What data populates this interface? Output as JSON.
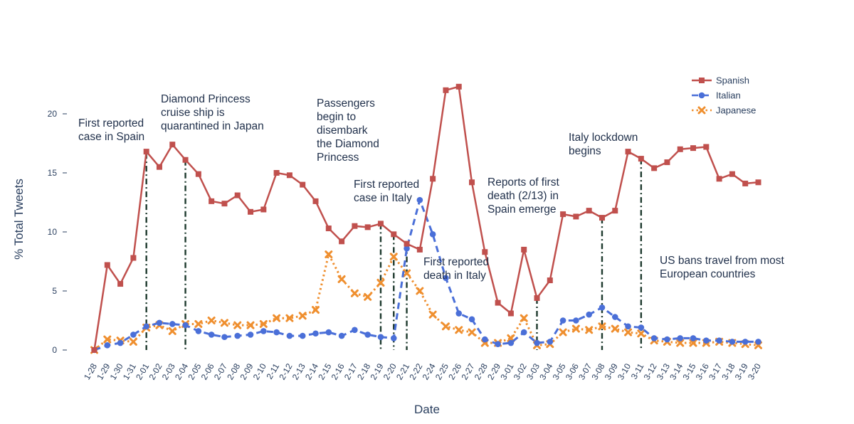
{
  "chart_data": {
    "type": "line",
    "xlabel": "Date",
    "ylabel": "% Total Tweets",
    "ylim": [
      -0.5,
      23
    ],
    "yticks": [
      0,
      5,
      10,
      15,
      20
    ],
    "grid": false,
    "legend_position": "top-right",
    "categories": [
      "1-28",
      "1-29",
      "1-30",
      "1-31",
      "2-01",
      "2-02",
      "2-03",
      "2-04",
      "2-05",
      "2-06",
      "2-07",
      "2-08",
      "2-09",
      "2-10",
      "2-11",
      "2-12",
      "2-13",
      "2-14",
      "2-15",
      "2-16",
      "2-17",
      "2-18",
      "2-19",
      "2-20",
      "2-21",
      "2-22",
      "2-24",
      "2-25",
      "2-26",
      "2-27",
      "2-28",
      "2-29",
      "3-01",
      "3-02",
      "3-03",
      "3-04",
      "3-05",
      "3-06",
      "3-07",
      "3-08",
      "3-09",
      "3-10",
      "3-11",
      "3-12",
      "3-13",
      "3-14",
      "3-15",
      "3-16",
      "3-17",
      "3-18",
      "3-19",
      "3-20"
    ],
    "series": [
      {
        "name": "Spanish",
        "color": "#c0504d",
        "marker": "square",
        "dash": "solid",
        "values": [
          0.0,
          7.2,
          5.6,
          7.8,
          16.8,
          15.5,
          17.4,
          16.1,
          14.9,
          12.6,
          12.4,
          13.1,
          11.7,
          11.9,
          15.0,
          14.8,
          14.0,
          12.6,
          10.3,
          9.2,
          10.5,
          10.4,
          10.7,
          9.8,
          9.0,
          8.5,
          14.5,
          22.0,
          22.3,
          14.2,
          8.3,
          4.0,
          3.1,
          8.5,
          4.4,
          5.9,
          11.5,
          11.3,
          11.8,
          11.2,
          11.8,
          16.8,
          16.2,
          15.4,
          15.9,
          17.0,
          17.1,
          17.2,
          14.5,
          14.9,
          14.1,
          14.2
        ]
      },
      {
        "name": "Italian",
        "color": "#4a6fd8",
        "marker": "circle",
        "dash": "dash",
        "values": [
          0.0,
          0.4,
          0.6,
          1.3,
          2.0,
          2.3,
          2.2,
          2.1,
          1.6,
          1.3,
          1.1,
          1.2,
          1.3,
          1.6,
          1.5,
          1.2,
          1.2,
          1.4,
          1.5,
          1.2,
          1.7,
          1.3,
          1.1,
          1.0,
          8.6,
          12.7,
          9.8,
          6.1,
          3.1,
          2.6,
          0.9,
          0.5,
          0.6,
          1.5,
          0.6,
          0.7,
          2.5,
          2.5,
          3.0,
          3.6,
          2.8,
          2.0,
          1.9,
          1.0,
          0.9,
          1.0,
          1.0,
          0.8,
          0.8,
          0.7,
          0.7,
          0.7
        ]
      },
      {
        "name": "Japanese",
        "color": "#ef8f2f",
        "marker": "x",
        "dash": "dot",
        "values": [
          0.0,
          0.9,
          0.8,
          0.7,
          1.9,
          2.1,
          1.6,
          2.2,
          2.2,
          2.5,
          2.3,
          2.1,
          2.1,
          2.2,
          2.7,
          2.7,
          2.9,
          3.4,
          8.1,
          6.0,
          4.8,
          4.5,
          5.7,
          7.9,
          6.5,
          5.0,
          3.0,
          2.0,
          1.7,
          1.5,
          0.6,
          0.6,
          1.0,
          2.7,
          0.4,
          0.5,
          1.5,
          1.8,
          1.7,
          2.0,
          1.8,
          1.5,
          1.4,
          0.8,
          0.7,
          0.6,
          0.6,
          0.6,
          0.7,
          0.6,
          0.5,
          0.4
        ]
      }
    ],
    "event_lines": [
      "2-01",
      "2-04",
      "2-19",
      "2-20",
      "2-21",
      "3-03",
      "3-08",
      "3-11"
    ],
    "annotations": [
      {
        "lines": [
          "First reported",
          "case in Spain"
        ]
      },
      {
        "lines": [
          "Diamond Princess",
          "cruise ship is",
          "quarantined in Japan"
        ]
      },
      {
        "lines": [
          "Passengers",
          "begin to",
          "disembark",
          "the Diamond",
          "Princess"
        ]
      },
      {
        "lines": [
          "First reported",
          "case in Italy"
        ]
      },
      {
        "lines": [
          "First reported",
          "death in Italy"
        ]
      },
      {
        "lines": [
          "Reports of first",
          "death (2/13) in",
          "Spain emerge"
        ]
      },
      {
        "lines": [
          "Italy lockdown",
          "begins"
        ]
      },
      {
        "lines": [
          "US bans travel from most",
          "European countries"
        ]
      }
    ]
  }
}
